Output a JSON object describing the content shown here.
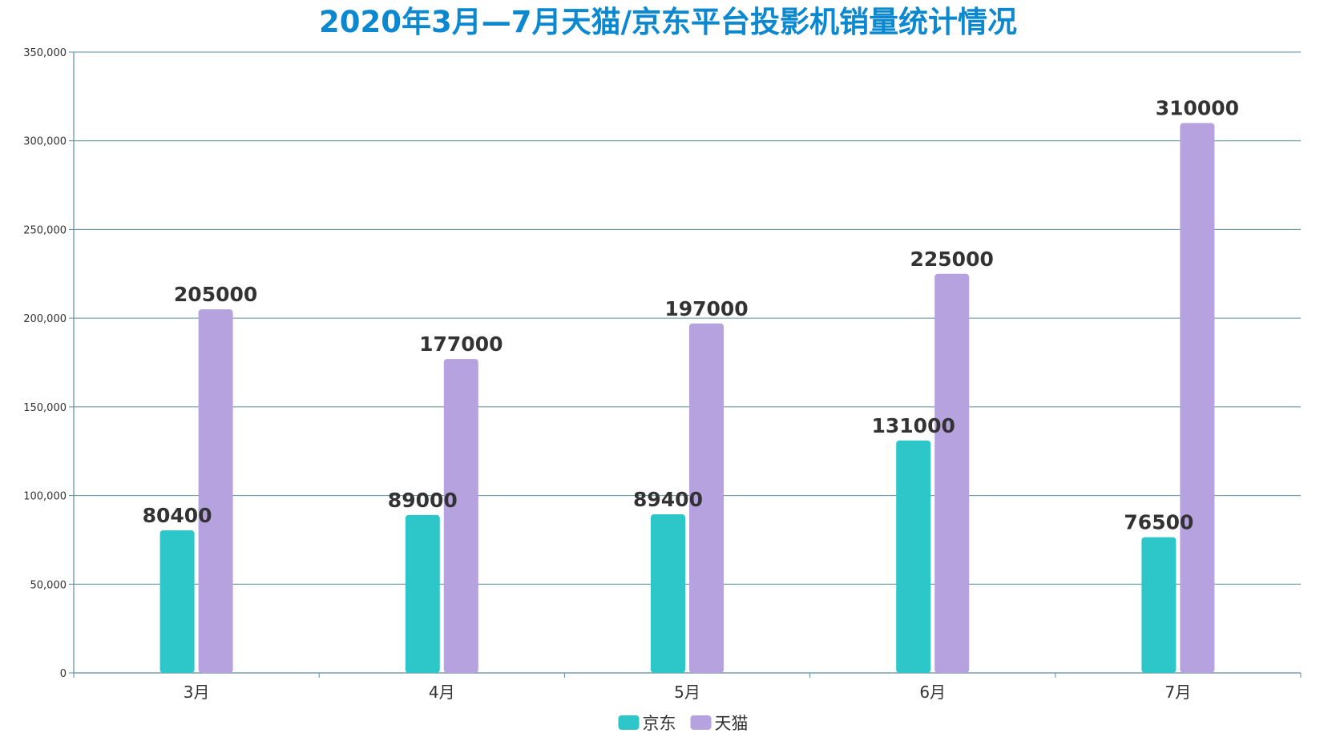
{
  "chart_data": {
    "type": "bar",
    "title": "2020年3月—7月天猫/京东平台投影机销量统计情况",
    "categories": [
      "3月",
      "4月",
      "5月",
      "6月",
      "7月"
    ],
    "series": [
      {
        "name": "京东",
        "color": "#2ec7c9",
        "values": [
          80400,
          89000,
          89400,
          131000,
          76500
        ]
      },
      {
        "name": "天猫",
        "color": "#b6a2de",
        "values": [
          205000,
          177000,
          197000,
          225000,
          310000
        ]
      }
    ],
    "ylim": [
      0,
      350000
    ],
    "yticks": [
      0,
      50000,
      100000,
      150000,
      200000,
      250000,
      300000,
      350000
    ],
    "ytick_labels": [
      "0",
      "50,000",
      "100,000",
      "150,000",
      "200,000",
      "250,000",
      "300,000",
      "350,000"
    ],
    "xlabel": "",
    "ylabel": "",
    "grid": true,
    "legend_position": "bottom-center",
    "axis_color": "#5b8fa0",
    "title_color": "#0b88d0"
  }
}
